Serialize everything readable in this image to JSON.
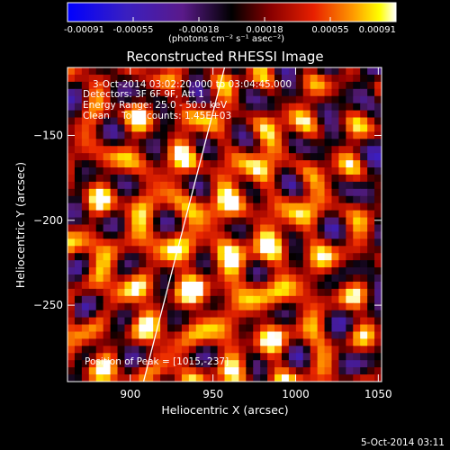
{
  "colorbar": {
    "ticks": [
      "-0.00091",
      "-0.00055",
      "-0.00018",
      "0.00018",
      "0.00055",
      "0.00091"
    ],
    "unit_label": "(photons cm⁻² s⁻¹ asec⁻²)"
  },
  "chart_data": {
    "type": "heatmap",
    "title": "Reconstructed RHESSI Image",
    "xlabel": "Heliocentric X (arcsec)",
    "ylabel": "Heliocentric Y (arcsec)",
    "xlim": [
      862,
      1052
    ],
    "ylim": [
      -295,
      -110
    ],
    "xticks": [
      900,
      950,
      1000,
      1050
    ],
    "yticks": [
      -150,
      -200,
      -250
    ],
    "color_range": [
      -0.00091,
      0.00091
    ],
    "colormap": "blue-purple-black-red-orange-yellow-white",
    "annotations": {
      "time": "3-Oct-2014 03:02:20.000 to 03:04:45.000",
      "detectors": "Detectors: 3F 6F 9F, Att 1",
      "energy": "Energy Range: 25.0 - 50.0 keV",
      "clean": "Clean    Total counts: 1.45E+03",
      "peak": "Position of Peak = [1015,-237]"
    },
    "limb_line": [
      [
        908,
        -295
      ],
      [
        957,
        -110
      ]
    ]
  },
  "footer": {
    "timestamp": "5-Oct-2014 03:11"
  }
}
